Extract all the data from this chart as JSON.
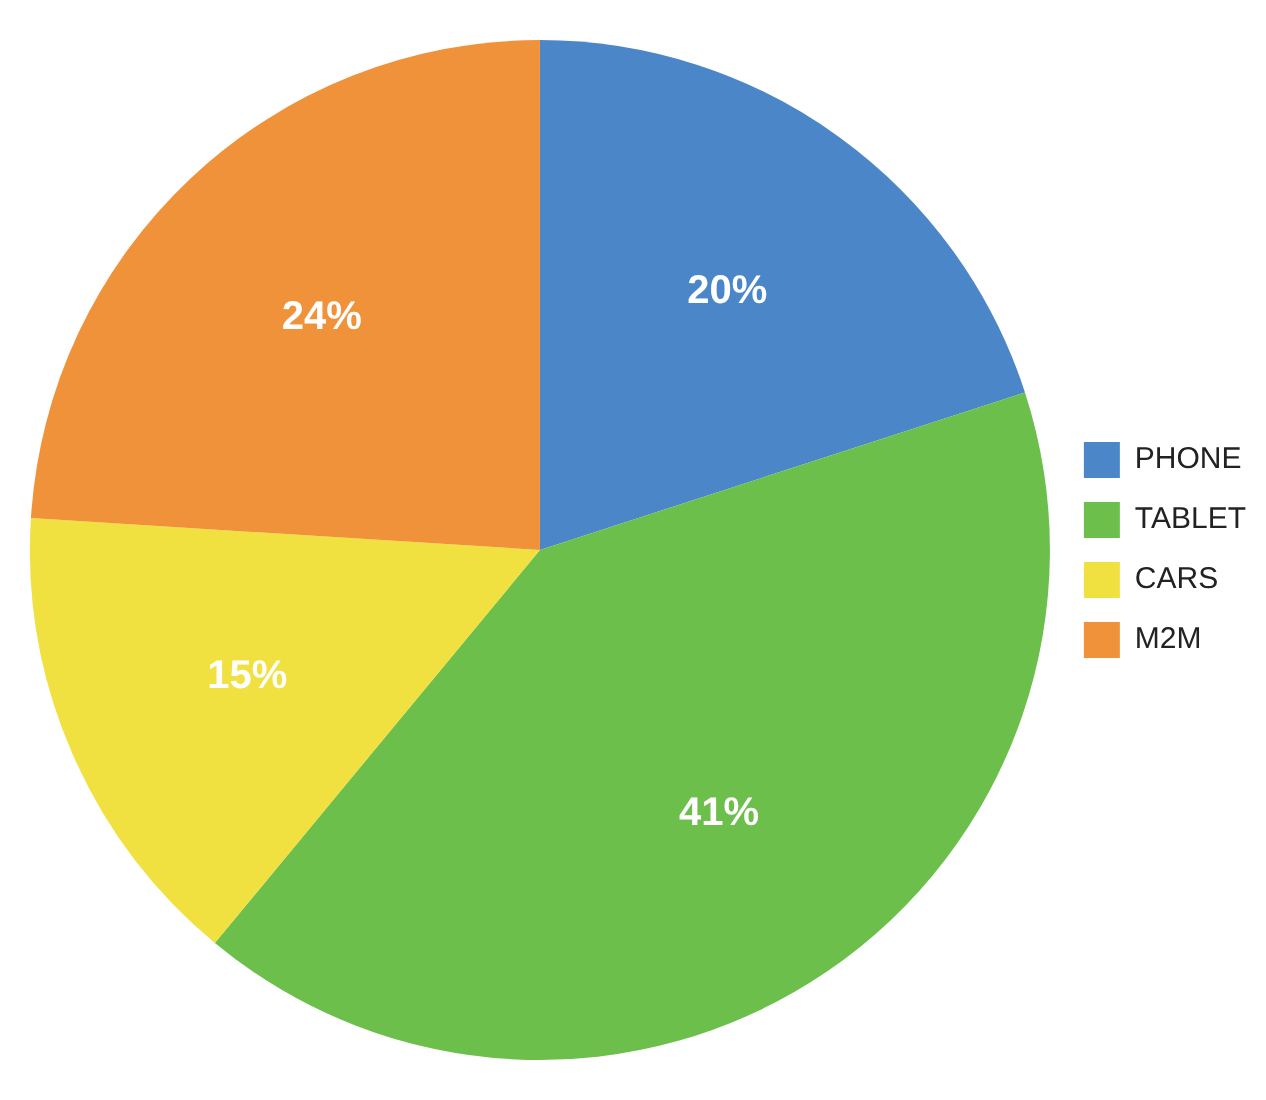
{
  "chart_data": {
    "type": "pie",
    "categories": [
      "PHONE",
      "TABLET",
      "CARS",
      "M2M"
    ],
    "values": [
      20,
      41,
      15,
      24
    ],
    "colors": [
      "#4a86c8",
      "#6cbf4a",
      "#f0e040",
      "#f0923a"
    ],
    "value_labels": [
      "20%",
      "41%",
      "15%",
      "24%"
    ],
    "legend": "right"
  }
}
